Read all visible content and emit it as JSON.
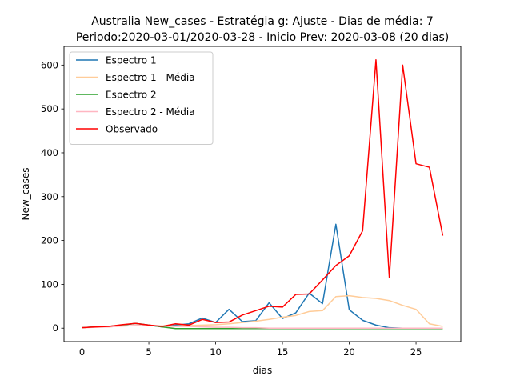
{
  "chart_data": {
    "type": "line",
    "title": "Australia New_cases - Estratégia g: Ajuste - Dias de média: 7",
    "subtitle": "Periodo:2020-03-01/2020-03-28 - Inicio Prev: 2020-03-08 (20 dias)",
    "xlabel": "dias",
    "ylabel": "New_cases",
    "xlim": [
      -1.35,
      28.35
    ],
    "ylim": [
      -30.6,
      642.6
    ],
    "xticks": [
      0,
      5,
      10,
      15,
      20,
      25
    ],
    "yticks": [
      0,
      100,
      200,
      300,
      400,
      500,
      600
    ],
    "grid": false,
    "legend_position": "top-left",
    "x": [
      0,
      1,
      2,
      3,
      4,
      5,
      6,
      7,
      8,
      9,
      10,
      11,
      12,
      13,
      14,
      15,
      16,
      17,
      18,
      19,
      20,
      21,
      22,
      23,
      24,
      25,
      26,
      27
    ],
    "series": [
      {
        "name": "Espectro 1",
        "color": "#1f77b4",
        "values": [
          1,
          3,
          4,
          7,
          11,
          7,
          3,
          7,
          10,
          23,
          13,
          43,
          15,
          17,
          58,
          22,
          35,
          80,
          56,
          237,
          42,
          18,
          7,
          1,
          0,
          0,
          0,
          0
        ]
      },
      {
        "name": "Espectro 1 - Média",
        "color": "#ffcc99",
        "values": [
          1,
          2,
          3,
          5,
          6,
          6,
          5,
          5,
          6,
          7,
          8,
          10,
          13,
          16,
          20,
          25,
          29,
          38,
          40,
          72,
          74,
          70,
          68,
          63,
          52,
          43,
          10,
          4
        ]
      },
      {
        "name": "Espectro 2",
        "color": "#2ca02c",
        "values": [
          1,
          3,
          4,
          7,
          11,
          7,
          3,
          -1,
          -1,
          -1,
          -1,
          -1,
          -1,
          -1,
          -1,
          -1,
          -1,
          -1,
          -1,
          -1,
          -1,
          -1,
          -1,
          -1,
          -1,
          -1,
          -1,
          -1
        ]
      },
      {
        "name": "Espectro 2 - Média",
        "color": "#ffb6c1",
        "values": [
          1,
          2,
          3,
          5,
          6,
          6,
          5,
          4,
          4,
          3,
          2,
          2,
          1,
          1,
          0,
          0,
          0,
          0,
          0,
          0,
          0,
          0,
          0,
          0,
          0,
          0,
          0,
          0
        ]
      },
      {
        "name": "Observado",
        "color": "#ff0000",
        "values": [
          1,
          3,
          4,
          8,
          11,
          7,
          4,
          10,
          7,
          20,
          13,
          14,
          30,
          40,
          50,
          48,
          77,
          78,
          110,
          143,
          165,
          222,
          612,
          115,
          600,
          375,
          367,
          211
        ]
      }
    ]
  }
}
